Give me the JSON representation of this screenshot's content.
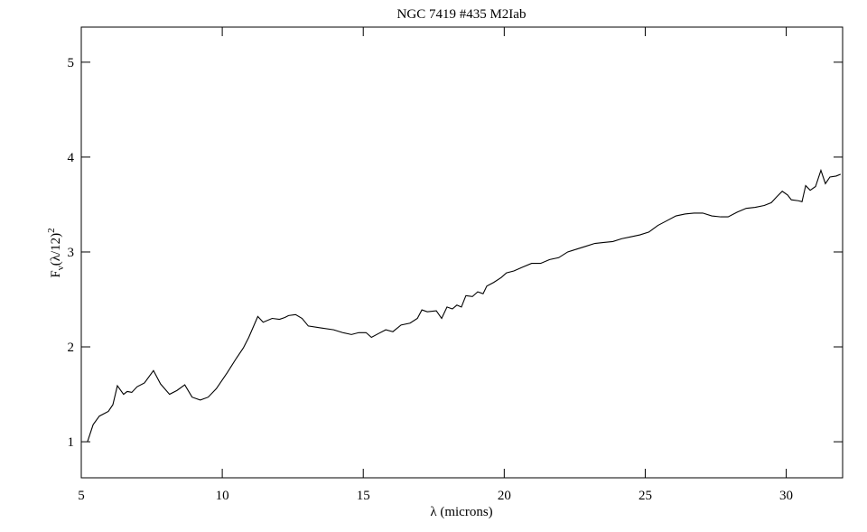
{
  "chart_data": {
    "type": "line",
    "title": "NGC 7419 #435 M2Iab",
    "x_label": "λ (microns)",
    "y_label_parts": [
      "F",
      "ν",
      "(λ/12)",
      "2"
    ],
    "xlim": [
      5,
      32
    ],
    "ylim": [
      0.62,
      5.37
    ],
    "xticks": [
      5,
      10,
      15,
      20,
      25,
      30
    ],
    "yticks": [
      1,
      2,
      3,
      4,
      5
    ],
    "grid": false,
    "series": [
      {
        "color": "#000000",
        "x": [
          5.22,
          5.42,
          5.64,
          5.96,
          6.12,
          6.28,
          6.5,
          6.63,
          6.79,
          6.98,
          7.24,
          7.56,
          7.81,
          8.13,
          8.39,
          8.67,
          8.93,
          9.22,
          9.5,
          9.79,
          10.18,
          10.5,
          10.75,
          10.94,
          11.26,
          11.45,
          11.77,
          12.03,
          12.22,
          12.35,
          12.6,
          12.83,
          13.05,
          13.5,
          13.95,
          14.27,
          14.58,
          14.84,
          15.1,
          15.29,
          15.54,
          15.8,
          16.05,
          16.34,
          16.66,
          16.92,
          17.08,
          17.27,
          17.59,
          17.78,
          17.97,
          18.16,
          18.32,
          18.48,
          18.64,
          18.87,
          19.06,
          19.25,
          19.38,
          19.63,
          19.89,
          20.08,
          20.34,
          20.65,
          20.97,
          21.29,
          21.61,
          21.93,
          22.25,
          22.57,
          22.89,
          23.21,
          23.53,
          23.85,
          24.17,
          24.49,
          24.81,
          25.13,
          25.45,
          25.77,
          26.09,
          26.41,
          26.73,
          27.04,
          27.36,
          27.68,
          27.94,
          28.26,
          28.58,
          28.9,
          29.22,
          29.47,
          29.66,
          29.86,
          30.05,
          30.18,
          30.43,
          30.56,
          30.69,
          30.85,
          31.04,
          31.23,
          31.39,
          31.55,
          31.77,
          31.93
        ],
        "values": [
          1.0,
          1.18,
          1.27,
          1.32,
          1.39,
          1.59,
          1.5,
          1.53,
          1.52,
          1.58,
          1.62,
          1.75,
          1.61,
          1.5,
          1.54,
          1.6,
          1.47,
          1.44,
          1.47,
          1.56,
          1.73,
          1.88,
          1.99,
          2.1,
          2.32,
          2.26,
          2.3,
          2.29,
          2.31,
          2.33,
          2.34,
          2.3,
          2.22,
          2.2,
          2.18,
          2.15,
          2.13,
          2.15,
          2.15,
          2.1,
          2.14,
          2.18,
          2.16,
          2.23,
          2.25,
          2.3,
          2.39,
          2.37,
          2.38,
          2.3,
          2.42,
          2.4,
          2.44,
          2.42,
          2.54,
          2.53,
          2.58,
          2.56,
          2.64,
          2.68,
          2.73,
          2.78,
          2.8,
          2.84,
          2.88,
          2.88,
          2.92,
          2.94,
          3.0,
          3.03,
          3.06,
          3.09,
          3.1,
          3.11,
          3.14,
          3.16,
          3.18,
          3.21,
          3.28,
          3.33,
          3.38,
          3.4,
          3.41,
          3.41,
          3.38,
          3.37,
          3.37,
          3.42,
          3.46,
          3.47,
          3.49,
          3.52,
          3.58,
          3.64,
          3.6,
          3.55,
          3.54,
          3.53,
          3.7,
          3.65,
          3.69,
          3.86,
          3.72,
          3.79,
          3.8,
          3.82
        ]
      }
    ]
  }
}
